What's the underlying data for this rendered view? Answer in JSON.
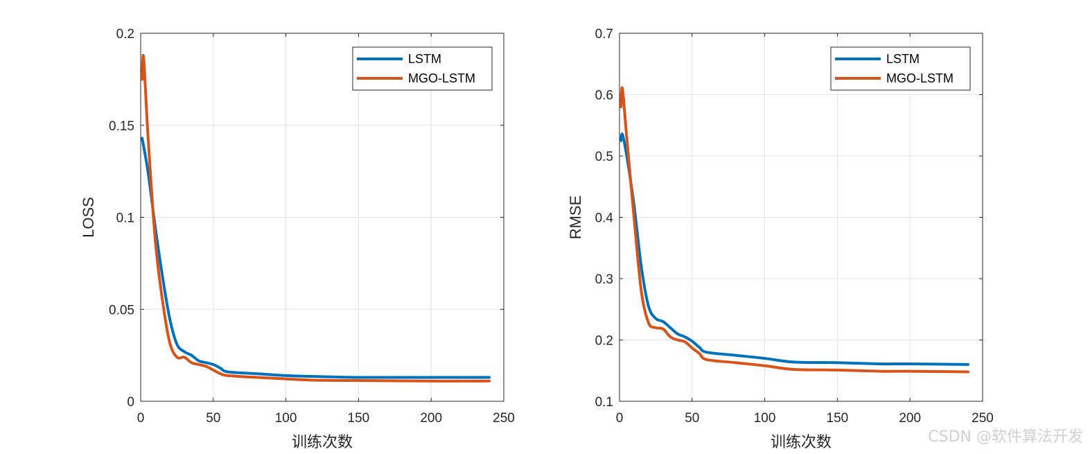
{
  "chart_data": [
    {
      "type": "line",
      "title": "",
      "xlabel": "训练次数",
      "ylabel": "LOSS",
      "xlim": [
        0,
        250
      ],
      "ylim": [
        0,
        0.2
      ],
      "xticks": [
        0,
        50,
        100,
        150,
        200,
        250
      ],
      "xtick_labels": [
        "0",
        "50",
        "100",
        "150",
        "200",
        "250"
      ],
      "yticks": [
        0,
        0.05,
        0.1,
        0.15,
        0.2
      ],
      "ytick_labels": [
        "0",
        "0.05",
        "0.1",
        "0.15",
        "0.2"
      ],
      "grid": true,
      "legend_position": "top-right",
      "series": [
        {
          "name": "LSTM",
          "color": "#0072bd",
          "x": [
            1,
            5,
            10,
            15,
            20,
            25,
            30,
            35,
            40,
            45,
            50,
            55,
            60,
            80,
            100,
            120,
            150,
            200,
            240
          ],
          "y": [
            0.143,
            0.125,
            0.095,
            0.068,
            0.045,
            0.031,
            0.027,
            0.025,
            0.022,
            0.021,
            0.02,
            0.018,
            0.016,
            0.015,
            0.014,
            0.0135,
            0.013,
            0.013,
            0.013
          ]
        },
        {
          "name": "MGO-LSTM",
          "color": "#d95319",
          "x": [
            1,
            2,
            5,
            10,
            15,
            20,
            25,
            30,
            35,
            40,
            45,
            50,
            55,
            60,
            80,
            100,
            120,
            150,
            200,
            240
          ],
          "y": [
            0.175,
            0.187,
            0.145,
            0.088,
            0.055,
            0.032,
            0.024,
            0.024,
            0.021,
            0.02,
            0.019,
            0.017,
            0.015,
            0.014,
            0.013,
            0.0122,
            0.0115,
            0.0113,
            0.011,
            0.011
          ]
        }
      ]
    },
    {
      "type": "line",
      "title": "",
      "xlabel": "训练次数",
      "ylabel": "RMSE",
      "xlim": [
        0,
        250
      ],
      "ylim": [
        0.1,
        0.7
      ],
      "xticks": [
        0,
        50,
        100,
        150,
        200,
        250
      ],
      "xtick_labels": [
        "0",
        "50",
        "100",
        "150",
        "200",
        "250"
      ],
      "yticks": [
        0.1,
        0.2,
        0.3,
        0.4,
        0.5,
        0.6,
        0.7
      ],
      "ytick_labels": [
        "0.1",
        "0.2",
        "0.3",
        "0.4",
        "0.5",
        "0.6",
        "0.7"
      ],
      "grid": true,
      "legend_position": "top-right",
      "series": [
        {
          "name": "LSTM",
          "color": "#0072bd",
          "x": [
            1,
            2,
            5,
            10,
            15,
            20,
            25,
            30,
            35,
            40,
            45,
            50,
            55,
            60,
            80,
            100,
            120,
            150,
            180,
            200,
            240
          ],
          "y": [
            0.525,
            0.535,
            0.5,
            0.42,
            0.32,
            0.255,
            0.235,
            0.23,
            0.22,
            0.21,
            0.205,
            0.198,
            0.188,
            0.18,
            0.175,
            0.17,
            0.164,
            0.163,
            0.161,
            0.161,
            0.16
          ]
        },
        {
          "name": "MGO-LSTM",
          "color": "#d95319",
          "x": [
            1,
            2,
            5,
            10,
            15,
            20,
            25,
            30,
            35,
            40,
            45,
            50,
            55,
            60,
            80,
            100,
            120,
            150,
            180,
            200,
            240
          ],
          "y": [
            0.58,
            0.61,
            0.53,
            0.4,
            0.28,
            0.228,
            0.22,
            0.218,
            0.205,
            0.2,
            0.197,
            0.187,
            0.178,
            0.168,
            0.163,
            0.158,
            0.152,
            0.151,
            0.149,
            0.149,
            0.148
          ]
        }
      ]
    }
  ],
  "watermark": "CSDN @软件算法开发"
}
